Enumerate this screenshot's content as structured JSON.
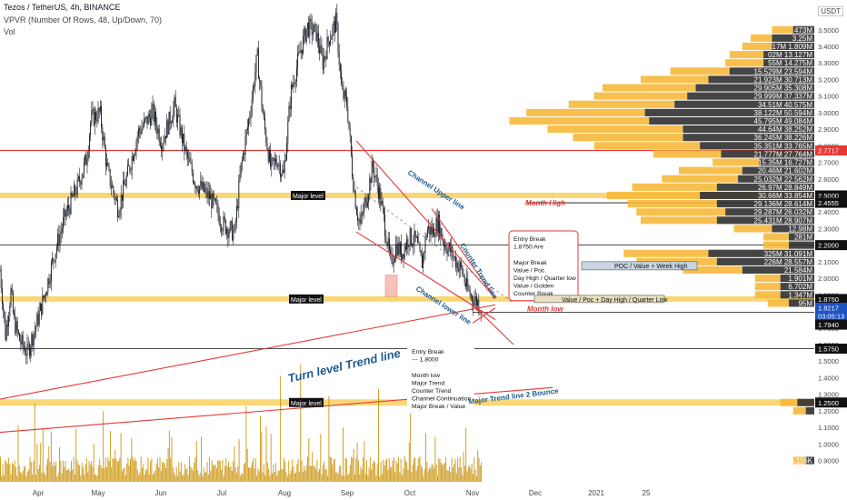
{
  "header": {
    "title": "Tezos / TetherUS, 4h, BINANCE",
    "indicator": "VPVR (Number Of Rows, 48, Up/Down, 70)",
    "volume": "Vol",
    "currency": "USDT"
  },
  "colors": {
    "candle": "#131722",
    "level_band": "#f7c948",
    "red_line": "#e53935",
    "blue_text": "#1e5a8c",
    "vp_up": "#f6b93b",
    "vp_down": "#2a2a2a",
    "volume": "#c98f00"
  },
  "chart_data": {
    "type": "candlestick",
    "xaxis": [
      "Apr",
      "May",
      "Jun",
      "Jul",
      "Aug",
      "Sep",
      "Oct",
      "Nov",
      "Dec",
      "2021",
      "25"
    ],
    "yaxis": [
      "3.5000",
      "3.4000",
      "3.3000",
      "3.2000",
      "3.1000",
      "3.0000",
      "2.9000",
      "2.8000",
      "2.7000",
      "2.6000",
      "2.5000",
      "2.4000",
      "2.3000",
      "2.2000",
      "2.1000",
      "2.0000",
      "1.9000",
      "1.8000",
      "1.7000",
      "1.6000",
      "1.5000",
      "1.4000",
      "1.3000",
      "1.2000",
      "1.1000",
      "1.0000",
      "0.9000"
    ],
    "ylim": [
      0.87,
      3.57
    ],
    "price_path": [
      [
        0,
        2.05
      ],
      [
        6,
        1.66
      ],
      [
        12,
        1.92
      ],
      [
        15,
        1.75
      ],
      [
        22,
        1.62
      ],
      [
        30,
        1.55
      ],
      [
        40,
        1.72
      ],
      [
        50,
        1.92
      ],
      [
        60,
        2.15
      ],
      [
        72,
        2.38
      ],
      [
        85,
        2.55
      ],
      [
        95,
        2.72
      ],
      [
        100,
        2.96
      ],
      [
        110,
        3.0
      ],
      [
        118,
        2.65
      ],
      [
        130,
        2.42
      ],
      [
        140,
        2.62
      ],
      [
        152,
        2.88
      ],
      [
        168,
        3.0
      ],
      [
        178,
        2.82
      ],
      [
        192,
        3.04
      ],
      [
        205,
        2.74
      ],
      [
        215,
        2.58
      ],
      [
        232,
        2.48
      ],
      [
        245,
        2.33
      ],
      [
        258,
        2.27
      ],
      [
        265,
        2.66
      ],
      [
        275,
        3.0
      ],
      [
        283,
        3.34
      ],
      [
        290,
        2.95
      ],
      [
        298,
        2.66
      ],
      [
        305,
        2.72
      ],
      [
        312,
        2.62
      ],
      [
        320,
        3.12
      ],
      [
        330,
        3.36
      ],
      [
        338,
        3.52
      ],
      [
        348,
        3.48
      ],
      [
        355,
        3.3
      ],
      [
        362,
        3.45
      ],
      [
        370,
        3.55
      ],
      [
        376,
        3.12
      ],
      [
        382,
        3.05
      ],
      [
        388,
        2.62
      ],
      [
        392,
        2.43
      ],
      [
        396,
        2.32
      ],
      [
        404,
        2.5
      ],
      [
        410,
        2.68
      ],
      [
        418,
        2.5
      ],
      [
        424,
        2.3
      ],
      [
        430,
        2.08
      ],
      [
        436,
        2.2
      ],
      [
        442,
        2.15
      ],
      [
        450,
        2.25
      ],
      [
        458,
        2.22
      ],
      [
        464,
        2.08
      ],
      [
        470,
        2.3
      ],
      [
        476,
        2.28
      ],
      [
        482,
        2.34
      ],
      [
        488,
        2.22
      ],
      [
        495,
        2.17
      ],
      [
        502,
        2.1
      ],
      [
        508,
        2.05
      ],
      [
        514,
        1.93
      ],
      [
        520,
        1.88
      ],
      [
        525,
        1.86
      ],
      [
        530,
        1.82
      ]
    ],
    "volume_profile": [
      {
        "price": 3.5,
        "label": "473M",
        "up": 0.025,
        "down": 0.025
      },
      {
        "price": 3.45,
        "label": "3.25M",
        "up": 0.025,
        "down": 0.05
      },
      {
        "price": 3.4,
        "label": "17M 1.809M",
        "up": 0.035,
        "down": 0.05
      },
      {
        "price": 3.35,
        "label": "02M 13.127M",
        "up": 0.04,
        "down": 0.06
      },
      {
        "price": 3.3,
        "label": "55M 14.275M",
        "up": 0.045,
        "down": 0.06
      },
      {
        "price": 3.25,
        "label": "15.529M 23.594M",
        "up": 0.07,
        "down": 0.1
      },
      {
        "price": 3.2,
        "label": "21.923M 30.713M",
        "up": 0.08,
        "down": 0.125
      },
      {
        "price": 3.15,
        "label": "29.905M 35.308M",
        "up": 0.11,
        "down": 0.14
      },
      {
        "price": 3.1,
        "label": "29.999M 37.337M",
        "up": 0.11,
        "down": 0.15
      },
      {
        "price": 3.05,
        "label": "34.51M 40.575M",
        "up": 0.125,
        "down": 0.165
      },
      {
        "price": 3.0,
        "label": "38.122M 50.594M",
        "up": 0.14,
        "down": 0.2
      },
      {
        "price": 2.95,
        "label": "45.795M 49.084M",
        "up": 0.165,
        "down": 0.195
      },
      {
        "price": 2.9,
        "label": "44.64M 38.252M",
        "up": 0.16,
        "down": 0.155
      },
      {
        "price": 2.85,
        "label": "36.245M 38.226M",
        "up": 0.13,
        "down": 0.155
      },
      {
        "price": 2.8,
        "label": "35.351M 33.765M",
        "up": 0.125,
        "down": 0.135
      },
      {
        "price": 2.75,
        "label": "21.777M 27.764M",
        "up": 0.08,
        "down": 0.11
      },
      {
        "price": 2.7,
        "label": "15.35M 16.727M",
        "up": 0.055,
        "down": 0.065
      },
      {
        "price": 2.65,
        "label": "20.46M 21.602M",
        "up": 0.075,
        "down": 0.085
      },
      {
        "price": 2.6,
        "label": "25.032M 22.562M",
        "up": 0.09,
        "down": 0.09
      },
      {
        "price": 2.55,
        "label": "26.97M 28.849M",
        "up": 0.1,
        "down": 0.115
      },
      {
        "price": 2.5,
        "label": "30.66M 33.854M",
        "up": 0.11,
        "down": 0.135
      },
      {
        "price": 2.45,
        "label": "29.136M 28.614M",
        "up": 0.105,
        "down": 0.115
      },
      {
        "price": 2.4,
        "label": "29.287M 26.032M",
        "up": 0.105,
        "down": 0.105
      },
      {
        "price": 2.35,
        "label": "25.431M 28.907M",
        "up": 0.09,
        "down": 0.115
      },
      {
        "price": 2.3,
        "label": "12.98M",
        "up": 0.045,
        "down": 0.05
      },
      {
        "price": 2.25,
        "label": "281M",
        "up": 0.03,
        "down": 0.03
      },
      {
        "price": 2.2,
        "label": "",
        "up": 0.03,
        "down": 0.03
      },
      {
        "price": 2.15,
        "label": "325M 31.091M",
        "up": 0.1,
        "down": 0.125
      },
      {
        "price": 2.1,
        "label": "226M 28.557M",
        "up": 0.095,
        "down": 0.115
      },
      {
        "price": 2.05,
        "label": "21.584M",
        "up": 0.07,
        "down": 0.085
      },
      {
        "price": 2.0,
        "label": "1.901M",
        "up": 0.03,
        "down": 0.04
      },
      {
        "price": 1.95,
        "label": "6.702M",
        "up": 0.03,
        "down": 0.04
      },
      {
        "price": 1.9,
        "label": "1.347M",
        "up": 0.03,
        "down": 0.04
      },
      {
        "price": 1.85,
        "label": "95M",
        "up": 0.025,
        "down": 0.03
      },
      {
        "price": 1.25,
        "label": "",
        "up": 0.02,
        "down": 0.02
      },
      {
        "price": 1.2,
        "label": "",
        "up": 0.015,
        "down": 0.01
      },
      {
        "price": 0.9,
        "label": "125.116K",
        "up": 0.015,
        "down": 0.01
      }
    ],
    "axis_labels": {
      "level_2_7717": "2.7717",
      "level_2_5": "2.5000",
      "level_2_4555": "2.4555",
      "level_2_2": "2.2000",
      "level_1_875": "1.8750",
      "level_1_8217": "1.8217",
      "countdown": "03:05:13",
      "level_1_794": "1.7940",
      "level_1_575": "1.5750",
      "level_1_25": "1.2500"
    },
    "annotations": {
      "major_level": "Major level",
      "month_high": "Month High",
      "month_low": "Month low",
      "channel_upper": "Channel Upper line",
      "channel_lower": "Channel lower line",
      "counter_trend": "Counter Trend line",
      "turn_level": "Turn level Trend line",
      "major_trend2": "Major Trend line 2 Bounce",
      "poc_week_high": "POC / Value   + Week High",
      "value_poc": "Value / Poc + Day High / Quarter Low",
      "box1": [
        "Entry Break",
        "1.8750 Are",
        "",
        "Major Break",
        "Value / Poc",
        "Day High / Quarter low",
        "Value / Golden",
        "Counter Break"
      ],
      "box2": [
        "Entry Break",
        "--- 1.8000",
        "",
        "Month low",
        "Major Trend",
        "Counter Trend",
        "Channel Continuation",
        "Major Break / Value"
      ]
    }
  }
}
